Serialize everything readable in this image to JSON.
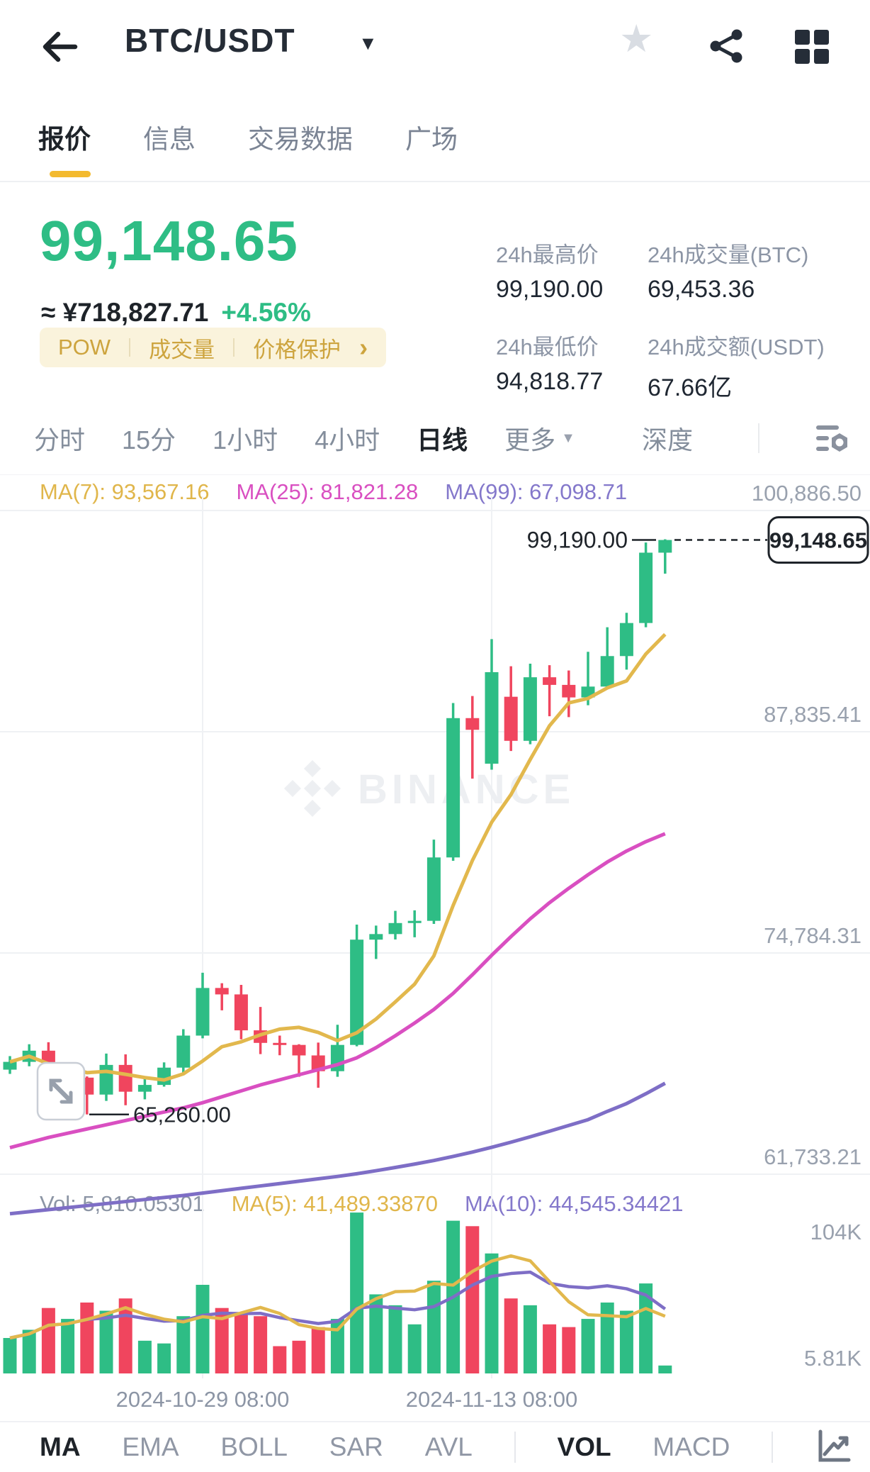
{
  "header": {
    "title": "BTC/USDT"
  },
  "icons": {
    "star": "★",
    "caret_down": "▼",
    "chevron_right": "›"
  },
  "tabs": [
    {
      "name": "quote",
      "label": "报价",
      "active": true
    },
    {
      "name": "info",
      "label": "信息",
      "active": false
    },
    {
      "name": "trade-data",
      "label": "交易数据",
      "active": false
    },
    {
      "name": "square",
      "label": "广场",
      "active": false
    }
  ],
  "ticker": {
    "last_price": "99,148.65",
    "fiat": "≈ ¥718,827.71",
    "change": "+4.56%",
    "tags": [
      "POW",
      "成交量",
      "价格保护"
    ]
  },
  "stats": [
    {
      "name": "high-24h",
      "label": "24h最高价",
      "value": "99,190.00"
    },
    {
      "name": "volume-btc-24h",
      "label": "24h成交量(BTC)",
      "value": "69,453.36"
    },
    {
      "name": "low-24h",
      "label": "24h最低价",
      "value": "94,818.77"
    },
    {
      "name": "volume-usdt-24h",
      "label": "24h成交额(USDT)",
      "value": "67.66亿"
    }
  ],
  "intervals": [
    {
      "name": "time",
      "label": "分时",
      "active": false
    },
    {
      "name": "15m",
      "label": "15分",
      "active": false
    },
    {
      "name": "1h",
      "label": "1小时",
      "active": false
    },
    {
      "name": "4h",
      "label": "4小时",
      "active": false
    },
    {
      "name": "1d",
      "label": "日线",
      "active": true
    },
    {
      "name": "more",
      "label": "更多",
      "active": false,
      "caret": true
    },
    {
      "name": "depth",
      "label": "深度",
      "active": false,
      "depth": true
    }
  ],
  "indicator_bar": [
    {
      "type": "item",
      "name": "ma",
      "label": "MA",
      "active": true
    },
    {
      "type": "item",
      "name": "ema",
      "label": "EMA",
      "active": false
    },
    {
      "type": "item",
      "name": "boll",
      "label": "BOLL",
      "active": false
    },
    {
      "type": "item",
      "name": "sar",
      "label": "SAR",
      "active": false
    },
    {
      "type": "item",
      "name": "avl",
      "label": "AVL",
      "active": false
    },
    {
      "type": "divider"
    },
    {
      "type": "item",
      "name": "vol",
      "label": "VOL",
      "active": true
    },
    {
      "type": "item",
      "name": "macd",
      "label": "MACD",
      "active": false
    },
    {
      "type": "divider"
    },
    {
      "type": "icon",
      "name": "chart-line-icon"
    }
  ],
  "chart_data": {
    "type": "candlestick+volume",
    "watermark": "BINANCE",
    "overlays": [
      {
        "label": "MA(7): 93,567.16",
        "color": "#E0B64B"
      },
      {
        "label": "MA(25): 81,821.28",
        "color": "#D94FC1"
      },
      {
        "label": "MA(99): 67,098.71",
        "color": "#8478CB"
      }
    ],
    "vol_overlays": [
      {
        "label": "Vol: 5,810.05301",
        "color": "#8c95a5"
      },
      {
        "label": "MA(5): 41,489.33870",
        "color": "#E0B64B"
      },
      {
        "label": "MA(10): 44,545.34421",
        "color": "#8478CB"
      }
    ],
    "y_axis": {
      "labels": [
        "100,886.50",
        "87,835.41",
        "74,784.31",
        "61,733.21"
      ],
      "values": [
        100886.5,
        87835.41,
        74784.31,
        61733.21
      ]
    },
    "volume_axis": {
      "labels": [
        "104K",
        "5.81K"
      ],
      "values": [
        104000,
        5810
      ]
    },
    "x_axis_labels": [
      {
        "text": "2024-10-29 08:00",
        "index": 10
      },
      {
        "text": "2024-11-13 08:00",
        "index": 25
      }
    ],
    "annotations": {
      "high": "99,190.00",
      "low": "65,260.00",
      "current": "99,148.65"
    },
    "colors": {
      "up": "#2EBD85",
      "down": "#F0455E",
      "ma7": "#E2B84D",
      "ma25": "#D94FC1",
      "ma99": "#7E6EC6",
      "grid": "#EFF1F4",
      "axis_text": "#99A1AE",
      "annotation": "#1E2329",
      "watermark": "#EDEFF2"
    },
    "candles": [
      [
        67900,
        68700,
        67650,
        68360,
        26
      ],
      [
        68360,
        69400,
        68100,
        69020,
        32
      ],
      [
        69020,
        69520,
        66840,
        67370,
        48
      ],
      [
        67370,
        67850,
        66560,
        67430,
        40
      ],
      [
        67430,
        67500,
        65260,
        66430,
        52
      ],
      [
        66430,
        68850,
        66060,
        68180,
        46
      ],
      [
        68180,
        68800,
        65800,
        66600,
        55
      ],
      [
        66600,
        67430,
        66150,
        67000,
        24
      ],
      [
        67000,
        68330,
        66900,
        68020,
        22
      ],
      [
        68020,
        70290,
        67590,
        69910,
        42
      ],
      [
        69910,
        73620,
        69750,
        72720,
        65
      ],
      [
        72720,
        73000,
        71400,
        72340,
        48
      ],
      [
        72340,
        72900,
        69690,
        70220,
        45
      ],
      [
        70220,
        71600,
        68820,
        69480,
        42
      ],
      [
        69480,
        69910,
        68750,
        69360,
        20
      ],
      [
        69360,
        69400,
        67480,
        68740,
        24
      ],
      [
        68740,
        69500,
        66830,
        67810,
        34
      ],
      [
        67810,
        70550,
        67480,
        69360,
        40
      ],
      [
        69360,
        76460,
        69280,
        75570,
        118
      ],
      [
        75570,
        76400,
        74430,
        75900,
        58
      ],
      [
        75900,
        77270,
        75580,
        76550,
        50
      ],
      [
        76550,
        77300,
        75710,
        76680,
        36
      ],
      [
        76680,
        81470,
        76500,
        80420,
        68
      ],
      [
        80420,
        89530,
        80220,
        88640,
        112
      ],
      [
        88640,
        89940,
        85070,
        87950,
        108
      ],
      [
        85950,
        93300,
        85600,
        91350,
        88
      ],
      [
        89900,
        91700,
        86700,
        87300,
        55
      ],
      [
        87300,
        91850,
        87100,
        91050,
        50
      ],
      [
        91050,
        91760,
        88750,
        90600,
        36
      ],
      [
        90600,
        91450,
        88700,
        89860,
        34
      ],
      [
        89860,
        92550,
        89400,
        90500,
        40
      ],
      [
        90500,
        94000,
        90400,
        92300,
        52
      ],
      [
        92300,
        94850,
        91500,
        94250,
        46
      ],
      [
        94250,
        99000,
        94000,
        98400,
        66
      ],
      [
        98400,
        99190,
        97160,
        99148.65,
        5.81
      ]
    ],
    "ma25": [
      63300,
      63600,
      63900,
      64150,
      64400,
      64650,
      64900,
      65150,
      65400,
      65650,
      65950,
      66300,
      66650,
      67000,
      67300,
      67600,
      67900,
      68200,
      68600,
      69200,
      69900,
      70650,
      71450,
      72400,
      73500,
      74650,
      75750,
      76800,
      77750,
      78600,
      79400,
      80150,
      80800,
      81350,
      81821
    ],
    "ma99": [
      59400,
      59520,
      59640,
      59760,
      59880,
      60000,
      60120,
      60240,
      60360,
      60480,
      60620,
      60760,
      60900,
      61040,
      61180,
      61320,
      61460,
      61600,
      61760,
      61940,
      62130,
      62330,
      62540,
      62780,
      63040,
      63320,
      63620,
      63940,
      64270,
      64610,
      64950,
      65440,
      65900,
      66480,
      67098
    ]
  }
}
